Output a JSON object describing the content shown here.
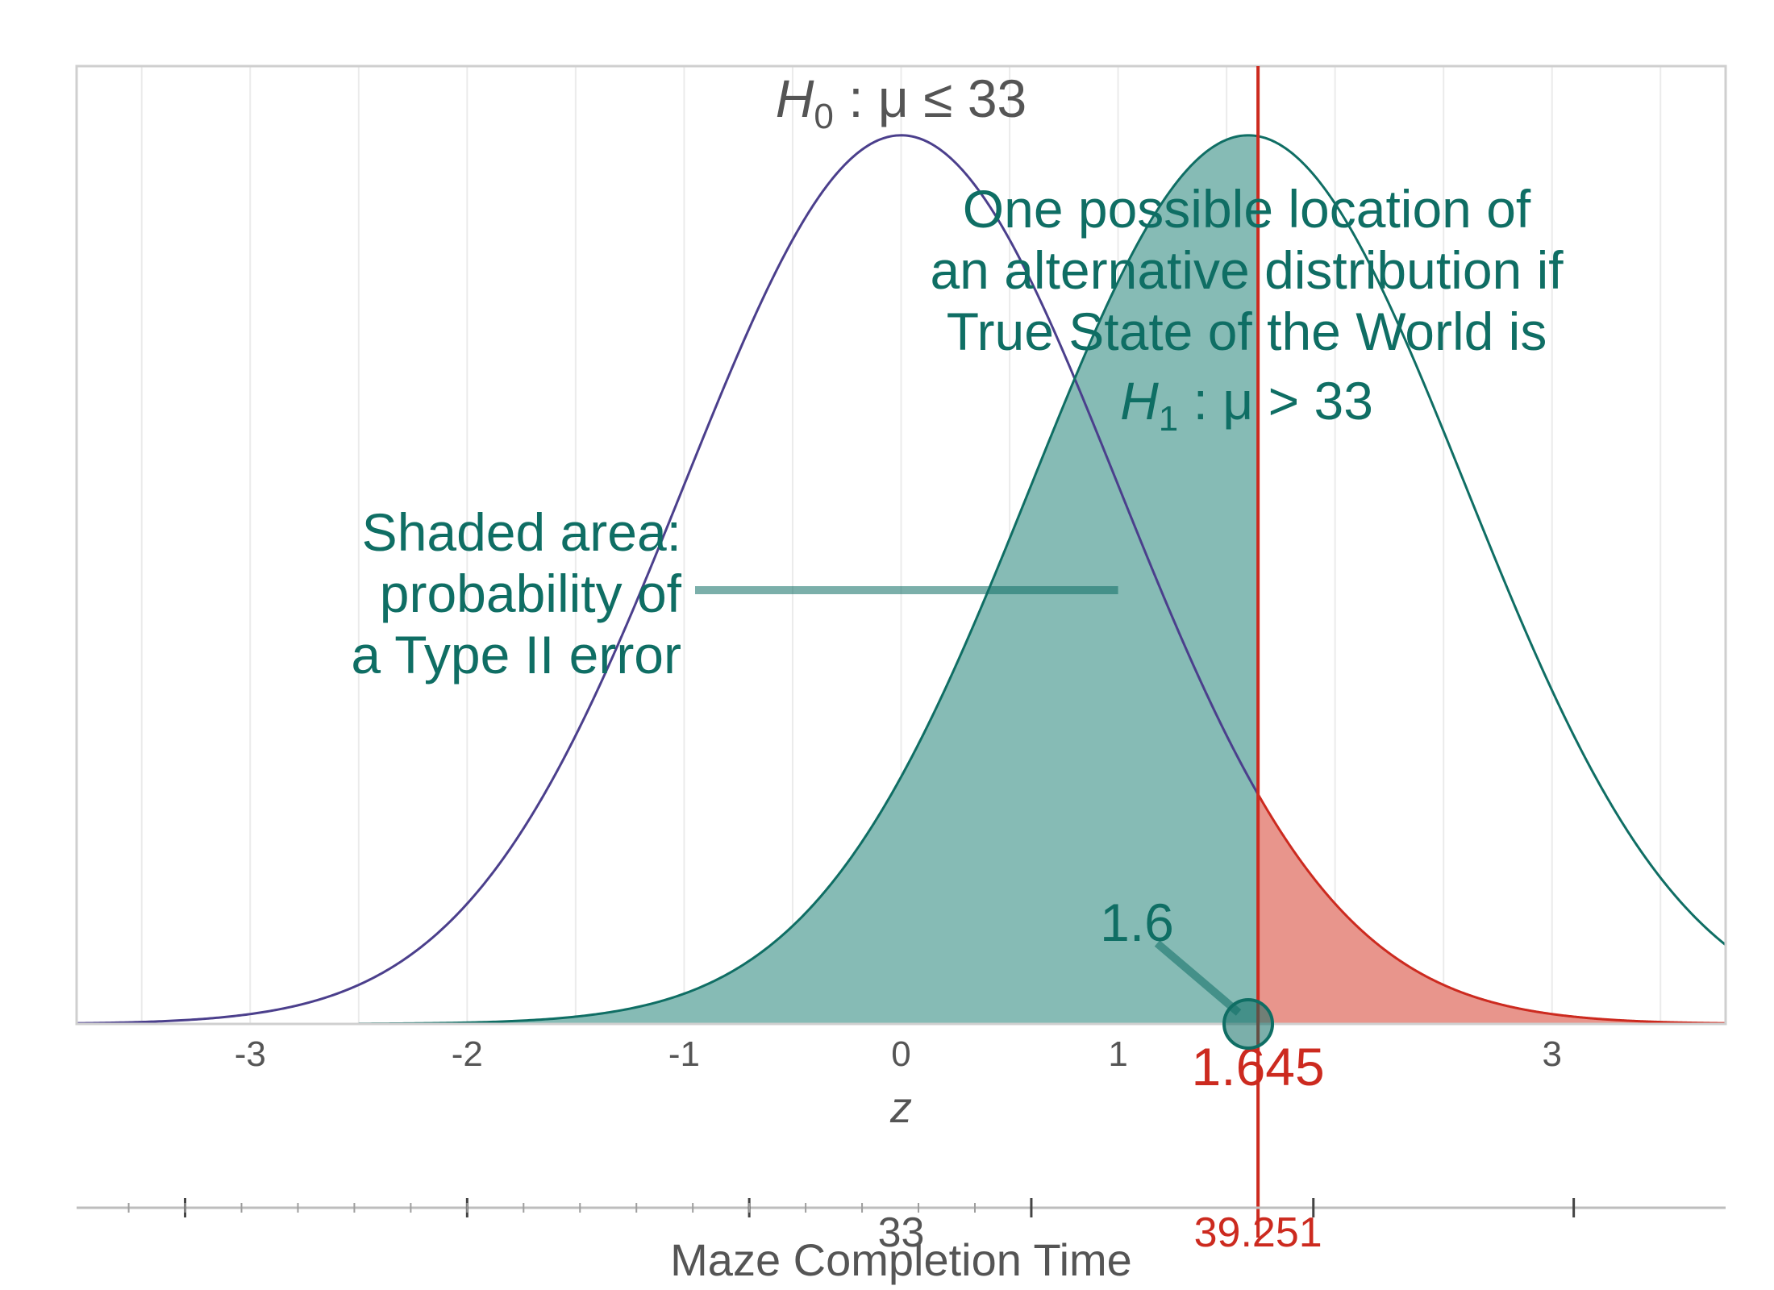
{
  "chart_data": {
    "type": "area",
    "title": "",
    "xlabel": "z",
    "xlim": [
      -3.8,
      3.8
    ],
    "ylim": [
      0,
      0.43
    ],
    "grid": true,
    "x_ticks": [
      -3,
      -2,
      -1,
      0,
      1,
      3
    ],
    "series": [
      {
        "name": "",
        "kind": "null-distribution",
        "mean": 0,
        "sd": 1,
        "color": "#4b3f8c"
      },
      {
        "name": "",
        "kind": "alternative-distribution",
        "mean": 1.6,
        "sd": 1,
        "color": "#0f6e64",
        "shaded_below": 1.645,
        "shade_color": "#86bbb5"
      },
      {
        "name": "",
        "kind": "rejection-region",
        "mean": 0,
        "sd": 1,
        "shaded_above": 1.645,
        "color": "#cc2a1f",
        "shade_color": "#e8958c"
      }
    ],
    "critical_value": {
      "z": 1.645,
      "label": "1.645",
      "color": "#cc2a1f"
    },
    "secondary_axis": {
      "label": "Maze Completion Time",
      "null_value": 33,
      "null_label": "33",
      "critical_raw": 39.251,
      "critical_label": "39.251",
      "major_ticks": [
        -3.3,
        -2,
        -0.7,
        0.6,
        1.9,
        3.1
      ],
      "minor_tick_step": 0.26
    },
    "annotations": {
      "h0": {
        "prefix": "H",
        "sub": "0",
        "rel": " : μ ≤ ",
        "value": "33",
        "x": 0
      },
      "h1_lines": [
        "One possible location of",
        "an alternative distribution if",
        "True State of the World is"
      ],
      "h1": {
        "prefix": "H",
        "sub": "1",
        "rel": " : μ > ",
        "value": "33"
      },
      "shaded_lines": [
        "Shaded area:",
        "probability of",
        "a Type II error"
      ],
      "alt_mean": {
        "label": "1.6",
        "z": 1.6
      }
    },
    "colors": {
      "null": "#4b3f8c",
      "alt": "#0f6e64",
      "alt_fill": "#86bbb5",
      "reject": "#cc2a1f",
      "reject_fill": "#e8958c",
      "axis_text": "#555555",
      "grid": "#ebebeb",
      "frame": "#cfcfcf"
    }
  }
}
